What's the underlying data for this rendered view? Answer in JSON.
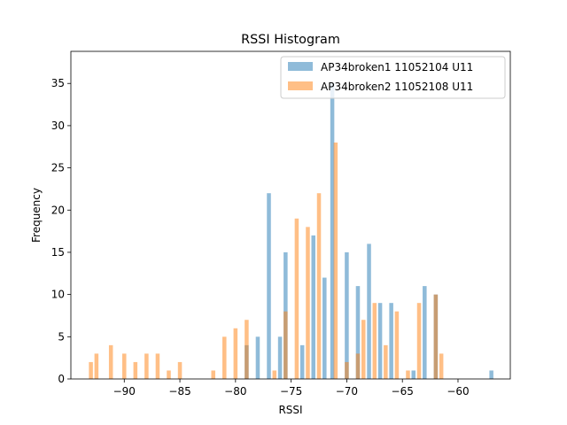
{
  "chart_data": {
    "type": "bar",
    "title": "RSSI Histogram",
    "xlabel": "RSSI",
    "ylabel": "Frequency",
    "xlim": [
      -94.8,
      -55.3
    ],
    "ylim": [
      0,
      38.8
    ],
    "xticks": [
      -90,
      -85,
      -80,
      -75,
      -70,
      -65,
      -60
    ],
    "xtick_labels": [
      "−90",
      "−85",
      "−80",
      "−75",
      "−70",
      "−65",
      "−60"
    ],
    "yticks": [
      0,
      5,
      10,
      15,
      20,
      25,
      30,
      35
    ],
    "ytick_labels": [
      "0",
      "5",
      "10",
      "15",
      "20",
      "25",
      "30",
      "35"
    ],
    "bar_width": 0.36,
    "grid": false,
    "legend_position": "top-right",
    "series": [
      {
        "name": "AP34broken1 11052104 U11",
        "color": "#1f77b4",
        "opacity": 0.5,
        "bars": [
          {
            "x": -79.0,
            "y": 4
          },
          {
            "x": -78.0,
            "y": 5
          },
          {
            "x": -77.0,
            "y": 22
          },
          {
            "x": -76.0,
            "y": 5
          },
          {
            "x": -75.5,
            "y": 15
          },
          {
            "x": -74.0,
            "y": 4
          },
          {
            "x": -73.0,
            "y": 17
          },
          {
            "x": -72.0,
            "y": 12
          },
          {
            "x": -71.3,
            "y": 35
          },
          {
            "x": -70.0,
            "y": 15
          },
          {
            "x": -69.0,
            "y": 11
          },
          {
            "x": -68.0,
            "y": 16
          },
          {
            "x": -67.0,
            "y": 9
          },
          {
            "x": -66.0,
            "y": 9
          },
          {
            "x": -64.0,
            "y": 1
          },
          {
            "x": -63.0,
            "y": 11
          },
          {
            "x": -62.0,
            "y": 10
          },
          {
            "x": -57.0,
            "y": 1
          }
        ]
      },
      {
        "name": "AP34broken2 11052108 U11",
        "color": "#ff7f0e",
        "opacity": 0.5,
        "bars": [
          {
            "x": -93.0,
            "y": 2
          },
          {
            "x": -92.5,
            "y": 3
          },
          {
            "x": -91.2,
            "y": 4
          },
          {
            "x": -90.0,
            "y": 3
          },
          {
            "x": -89.0,
            "y": 2
          },
          {
            "x": -88.0,
            "y": 3
          },
          {
            "x": -87.0,
            "y": 3
          },
          {
            "x": -86.0,
            "y": 1
          },
          {
            "x": -85.0,
            "y": 2
          },
          {
            "x": -82.0,
            "y": 1
          },
          {
            "x": -81.0,
            "y": 5
          },
          {
            "x": -80.0,
            "y": 6
          },
          {
            "x": -79.0,
            "y": 7
          },
          {
            "x": -76.5,
            "y": 1
          },
          {
            "x": -75.5,
            "y": 8
          },
          {
            "x": -74.5,
            "y": 19
          },
          {
            "x": -73.5,
            "y": 18
          },
          {
            "x": -72.5,
            "y": 22
          },
          {
            "x": -71.0,
            "y": 28
          },
          {
            "x": -70.0,
            "y": 2
          },
          {
            "x": -69.0,
            "y": 3
          },
          {
            "x": -68.5,
            "y": 7
          },
          {
            "x": -67.5,
            "y": 9
          },
          {
            "x": -66.5,
            "y": 4
          },
          {
            "x": -65.5,
            "y": 8
          },
          {
            "x": -64.5,
            "y": 1
          },
          {
            "x": -63.5,
            "y": 9
          },
          {
            "x": -62.0,
            "y": 10
          },
          {
            "x": -61.5,
            "y": 3
          }
        ]
      }
    ]
  }
}
